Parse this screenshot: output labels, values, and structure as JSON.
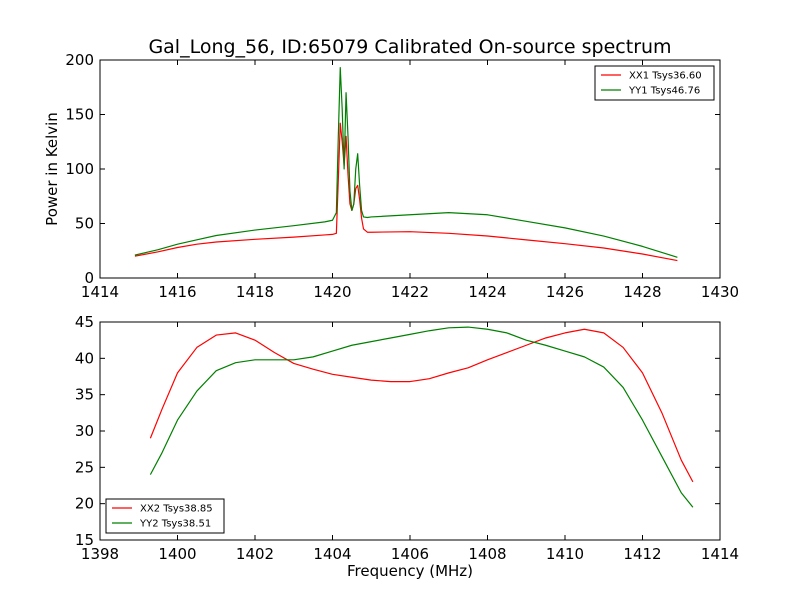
{
  "chart_data": [
    {
      "type": "line",
      "title": "Gal_Long_56, ID:65079 Calibrated On-source spectrum",
      "xlabel": "",
      "ylabel": "Power in Kelvin",
      "xlim": [
        1414,
        1430
      ],
      "ylim": [
        0,
        200
      ],
      "xticks": [
        1414,
        1416,
        1418,
        1420,
        1422,
        1424,
        1426,
        1428,
        1430
      ],
      "yticks": [
        0,
        50,
        100,
        150,
        200
      ],
      "grid": false,
      "legend": "top-right",
      "series": [
        {
          "name": "XX1 Tsys36.60",
          "color": "#ff0000",
          "x": [
            1414.9,
            1415.5,
            1416.0,
            1416.5,
            1417.0,
            1418.0,
            1419.0,
            1419.8,
            1420.0,
            1420.1,
            1420.15,
            1420.2,
            1420.25,
            1420.3,
            1420.35,
            1420.4,
            1420.45,
            1420.5,
            1420.55,
            1420.6,
            1420.65,
            1420.7,
            1420.75,
            1420.8,
            1420.9,
            1421.0,
            1422.0,
            1423.0,
            1424.0,
            1425.0,
            1426.0,
            1427.0,
            1428.0,
            1428.9
          ],
          "y": [
            20,
            24,
            28,
            31,
            33,
            35.5,
            37.5,
            39.5,
            40,
            41,
            90,
            142,
            125,
            103,
            130,
            95,
            68,
            62,
            68,
            82,
            85,
            72,
            55,
            45,
            42,
            42,
            42.5,
            41,
            38.5,
            35,
            31.5,
            27.5,
            22,
            16
          ]
        },
        {
          "name": "YY1 Tsys46.76",
          "color": "#008000",
          "x": [
            1414.9,
            1415.5,
            1416.0,
            1416.5,
            1417.0,
            1418.0,
            1419.0,
            1419.8,
            1420.0,
            1420.1,
            1420.15,
            1420.2,
            1420.25,
            1420.3,
            1420.35,
            1420.4,
            1420.45,
            1420.5,
            1420.55,
            1420.6,
            1420.65,
            1420.7,
            1420.75,
            1420.8,
            1420.9,
            1421.0,
            1422.0,
            1423.0,
            1424.0,
            1425.0,
            1426.0,
            1427.0,
            1428.0,
            1428.9
          ],
          "y": [
            21,
            26,
            31,
            35,
            39,
            44,
            48,
            51.5,
            53,
            60,
            130,
            193,
            155,
            100,
            170,
            130,
            80,
            62,
            68,
            100,
            114,
            85,
            62,
            56,
            55.5,
            56,
            58,
            60,
            58,
            52,
            46,
            38.5,
            29,
            19
          ]
        }
      ]
    },
    {
      "type": "line",
      "title": "",
      "xlabel": "Frequency (MHz)",
      "ylabel": "",
      "xlim": [
        1398,
        1414
      ],
      "ylim": [
        15,
        45
      ],
      "xticks": [
        1398,
        1400,
        1402,
        1404,
        1406,
        1408,
        1410,
        1412,
        1414
      ],
      "yticks": [
        15,
        20,
        25,
        30,
        35,
        40,
        45
      ],
      "grid": false,
      "legend": "bottom-left",
      "series": [
        {
          "name": "XX2 Tsys38.85",
          "color": "#ff0000",
          "x": [
            1399.3,
            1399.6,
            1400.0,
            1400.5,
            1401.0,
            1401.5,
            1402.0,
            1402.5,
            1403.0,
            1403.5,
            1404.0,
            1404.5,
            1405.0,
            1405.5,
            1406.0,
            1406.5,
            1407.0,
            1407.5,
            1408.0,
            1408.5,
            1409.0,
            1409.5,
            1410.0,
            1410.5,
            1411.0,
            1411.5,
            1412.0,
            1412.5,
            1413.0,
            1413.3
          ],
          "y": [
            29,
            33,
            38,
            41.5,
            43.2,
            43.5,
            42.5,
            40.8,
            39.3,
            38.5,
            37.8,
            37.4,
            37,
            36.8,
            36.8,
            37.2,
            38,
            38.7,
            39.8,
            40.8,
            41.8,
            42.8,
            43.5,
            44,
            43.5,
            41.5,
            38,
            32.5,
            26,
            23
          ]
        },
        {
          "name": "YY2 Tsys38.51",
          "color": "#008000",
          "x": [
            1399.3,
            1399.6,
            1400.0,
            1400.5,
            1401.0,
            1401.5,
            1402.0,
            1402.5,
            1403.0,
            1403.5,
            1404.0,
            1404.5,
            1405.0,
            1405.5,
            1406.0,
            1406.5,
            1407.0,
            1407.5,
            1408.0,
            1408.5,
            1409.0,
            1409.5,
            1410.0,
            1410.5,
            1411.0,
            1411.5,
            1412.0,
            1412.5,
            1413.0,
            1413.3
          ],
          "y": [
            24,
            27,
            31.5,
            35.5,
            38.3,
            39.4,
            39.8,
            39.8,
            39.8,
            40.2,
            41,
            41.8,
            42.3,
            42.8,
            43.3,
            43.8,
            44.2,
            44.3,
            44,
            43.5,
            42.5,
            41.8,
            41,
            40.2,
            38.8,
            36,
            31.5,
            26.5,
            21.5,
            19.5
          ]
        }
      ]
    }
  ]
}
